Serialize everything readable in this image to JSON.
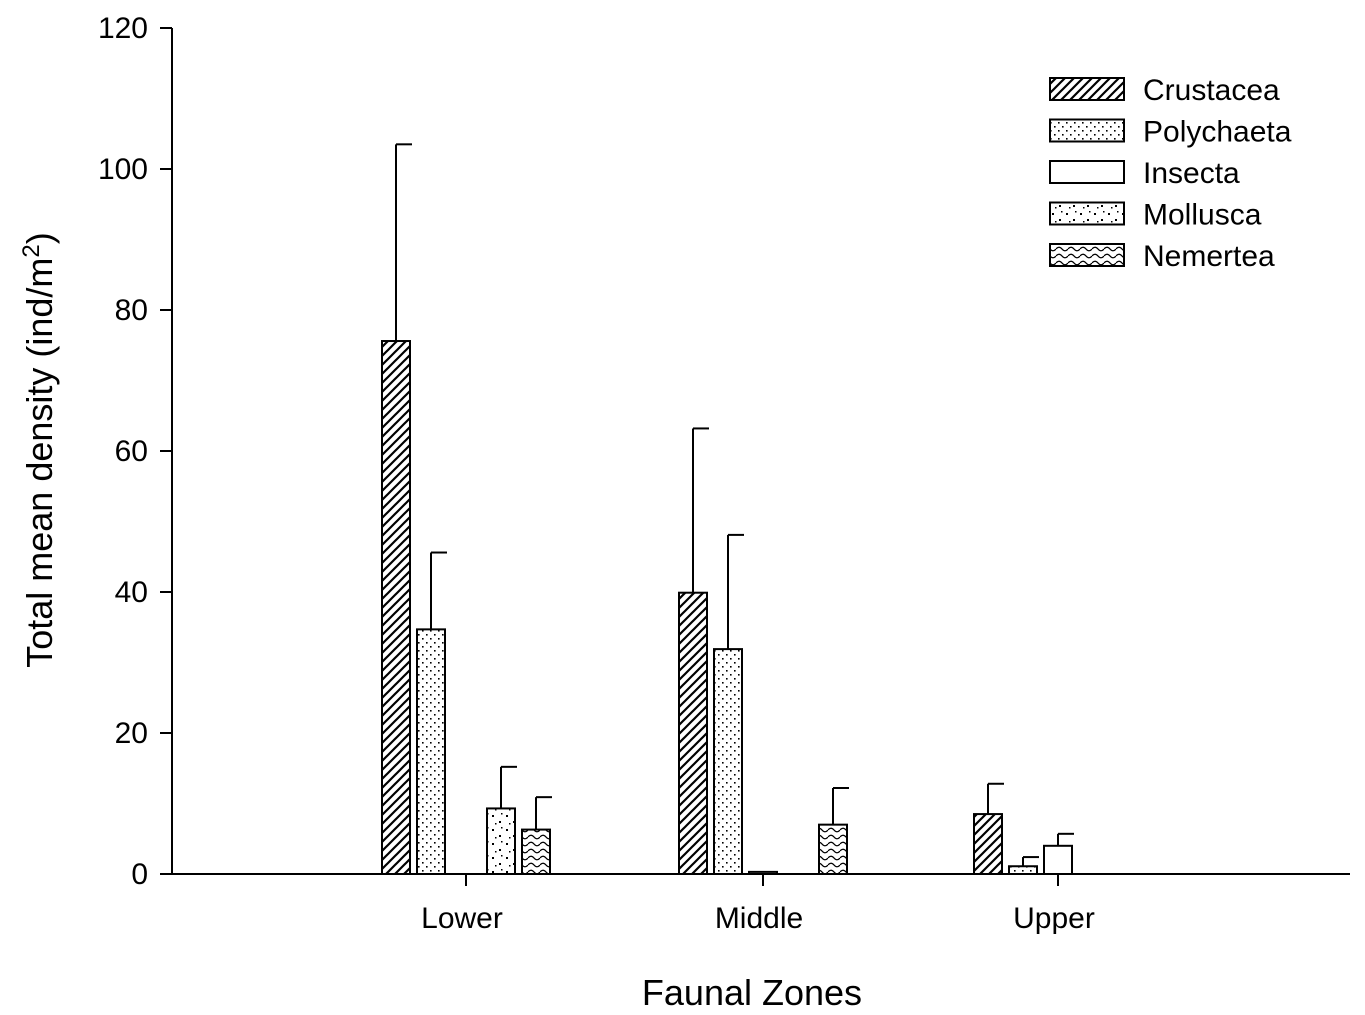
{
  "chart_data": {
    "type": "bar",
    "title": "",
    "xlabel": "Faunal Zones",
    "ylabel": "Total mean density (ind/m",
    "ylabel_superscript": "2",
    "ylabel_suffix": ")",
    "categories": [
      "Lower",
      "Middle",
      "Upper"
    ],
    "ylim": [
      0,
      120
    ],
    "yticks": [
      "0",
      "20",
      "40",
      "60",
      "80",
      "100",
      "120"
    ],
    "legend_position": "top-right",
    "error_bars": true,
    "series": [
      {
        "name": "Crustacea",
        "pattern": "diagonal-hatch",
        "values": [
          75.6,
          39.9,
          8.5
        ],
        "errors": [
          27.9,
          23.3,
          4.3
        ]
      },
      {
        "name": "Polychaeta",
        "pattern": "dots",
        "values": [
          34.7,
          31.9,
          1.1
        ],
        "errors": [
          10.9,
          16.2,
          1.3
        ]
      },
      {
        "name": "Insecta",
        "pattern": "none",
        "values": [
          0,
          0.3,
          4.0
        ],
        "errors": [
          0,
          0,
          1.7
        ]
      },
      {
        "name": "Mollusca",
        "pattern": "sparse-dots",
        "values": [
          9.3,
          0,
          0
        ],
        "errors": [
          5.9,
          0,
          0
        ]
      },
      {
        "name": "Nemertea",
        "pattern": "waves",
        "values": [
          6.3,
          7.0,
          0
        ],
        "errors": [
          4.6,
          5.2,
          0
        ]
      }
    ]
  }
}
